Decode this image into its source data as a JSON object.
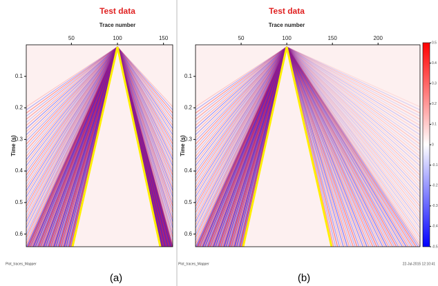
{
  "chart_data": [
    {
      "type": "seismic",
      "title": "Test data",
      "xlabel": "Trace number",
      "ylabel": "Time (s)",
      "xlim": [
        1,
        160
      ],
      "xticks": [
        50,
        100,
        150
      ],
      "ylim": [
        0,
        0.64
      ],
      "yticks": [
        0.1,
        0.2,
        0.3,
        0.4,
        0.5,
        0.6
      ],
      "footer_left": "Plot_traces_Mapper",
      "caption": "(a)"
    },
    {
      "type": "seismic",
      "title": "Test data",
      "xlabel": "Trace number",
      "ylabel": "Time (s)",
      "xlim": [
        0,
        246
      ],
      "xticks": [
        50,
        100,
        150,
        200
      ],
      "ylim": [
        0,
        0.64
      ],
      "yticks": [
        0.1,
        0.2,
        0.3,
        0.4,
        0.5,
        0.6
      ],
      "footer_left": "Plot_traces_Mapper",
      "footer_right": "22-Jul-2015 12:10:41",
      "caption": "(b)",
      "colorbar": {
        "lim": [
          -0.5,
          0.5
        ],
        "ticks": [
          0.5,
          0.4,
          0.3,
          0.2,
          0.1,
          0,
          -0.1,
          -0.2,
          -0.3,
          -0.4,
          -0.5
        ]
      }
    }
  ]
}
